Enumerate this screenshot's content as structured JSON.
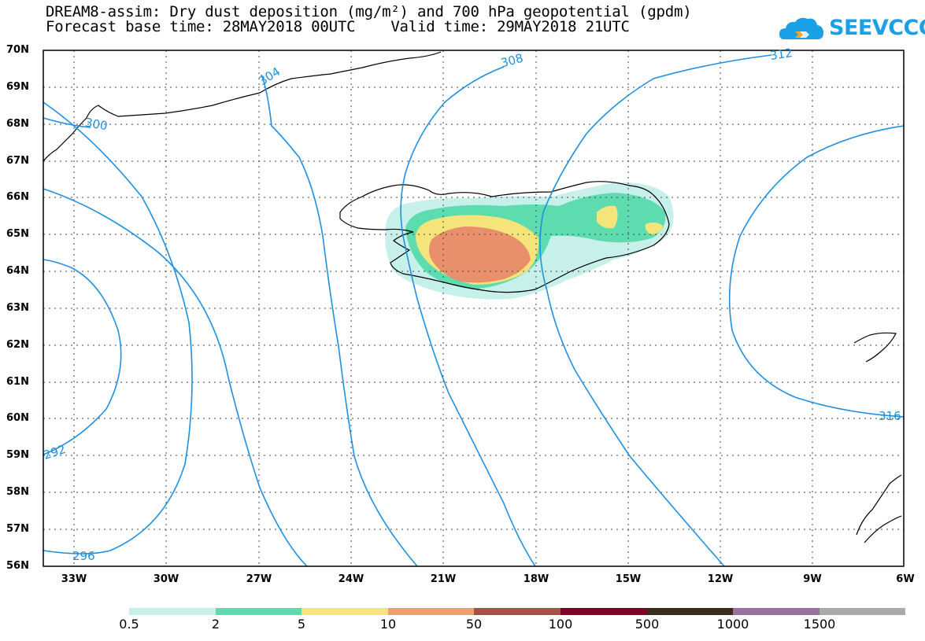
{
  "header": {
    "title_line1": "DREAM8-assim: Dry dust deposition (mg/m²) and 700 hPa geopotential (gpdm)",
    "title_line2": "Forecast base time: 28MAY2018 00UTC    Valid time: 29MAY2018 21UTC"
  },
  "logo": {
    "text": "SEEVCCC",
    "color": "#1aa0e6"
  },
  "axes": {
    "lat_labels": [
      "70N",
      "69N",
      "68N",
      "67N",
      "66N",
      "65N",
      "64N",
      "63N",
      "62N",
      "61N",
      "60N",
      "59N",
      "58N",
      "57N",
      "56N"
    ],
    "lon_labels": [
      "33W",
      "30W",
      "27W",
      "24W",
      "21W",
      "18W",
      "15W",
      "12W",
      "9W",
      "6W"
    ]
  },
  "contours": {
    "color": "#1e90e0",
    "labels": [
      "304",
      "308",
      "312",
      "300",
      "316",
      "292",
      "296"
    ]
  },
  "colorbar": {
    "labels": [
      "0.5",
      "2",
      "5",
      "10",
      "50",
      "100",
      "500",
      "1000",
      "1500"
    ],
    "colors": [
      "#c8f0ea",
      "#5ddcb0",
      "#f5e47a",
      "#f0a070",
      "#a85048",
      "#820028",
      "#3e2a1a",
      "#9a70a0",
      "#aaaaaa"
    ]
  },
  "dust_colors": {
    "level1": "#c8f0ea",
    "level2": "#5ddcb0",
    "level3": "#f5e47a",
    "level4": "#e8906c"
  }
}
